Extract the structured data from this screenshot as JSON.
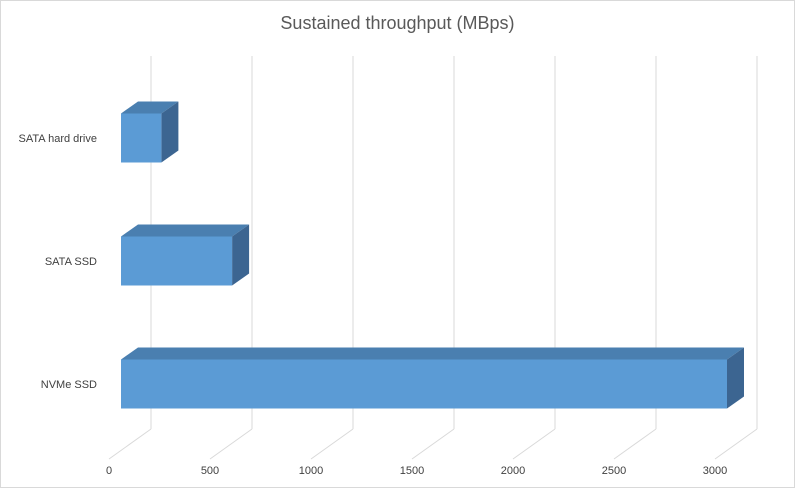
{
  "chart_data": {
    "type": "bar",
    "orientation": "horizontal",
    "style": "3d",
    "title": "Sustained throughput (MBps)",
    "categories": [
      "SATA hard drive",
      "SATA SSD",
      "NVMe SSD"
    ],
    "values": [
      200,
      550,
      3000
    ],
    "xlim": [
      0,
      3000
    ],
    "x_ticks": [
      "0",
      "500",
      "1000",
      "1500",
      "2000",
      "2500",
      "3000"
    ],
    "grid": true,
    "legend": "none",
    "colors": {
      "bar_front": "#5b9bd5",
      "bar_top": "#4a7fb0",
      "bar_side": "#3c6591",
      "grid": "#d9d9d9"
    }
  }
}
